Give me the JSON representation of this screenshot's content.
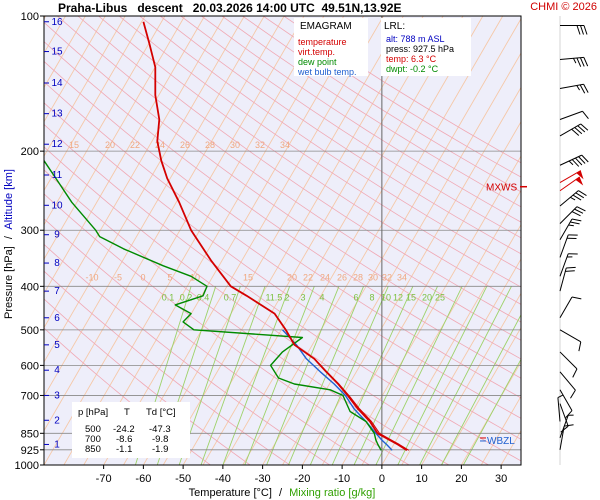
{
  "header": {
    "title": "Praha-Libus   descent   20.03.2026 14:00 UTC  49.51N,13.92E",
    "copyright": "CHMI © 2026"
  },
  "legend": {
    "title": "EMAGRAM",
    "items": [
      {
        "label": "temperature",
        "color": "#d40000"
      },
      {
        "label": "virt.temp.",
        "color": "#d40000"
      },
      {
        "label": "dew point",
        "color": "#008a00"
      },
      {
        "label": "wet bulb temp.",
        "color": "#2060d0"
      }
    ]
  },
  "lrl": {
    "title": "LRL:",
    "lines": [
      {
        "text": "alt: 788 m ASL",
        "color": "#0000c0"
      },
      {
        "text": "press: 927.5 hPa",
        "color": "#000000"
      },
      {
        "text": "temp: 6.3 °C",
        "color": "#d40000"
      },
      {
        "text": "dwpt: -0.2 °C",
        "color": "#008a00"
      }
    ]
  },
  "level_table": {
    "headers": [
      "p [hPa]",
      "T",
      "Td [°C]"
    ],
    "rows": [
      [
        "500",
        "-24.2",
        "-47.3"
      ],
      [
        "700",
        "-8.6",
        "-9.8"
      ],
      [
        "850",
        "-1.1",
        "-1.9"
      ]
    ]
  },
  "chart_data": {
    "type": "line",
    "title": "EMAGRAM",
    "xlabel": "Temperature [°C]",
    "xlabel_sep": "/",
    "xlabel2": "Mixing ratio [g/kg]",
    "ylabel": "Pressure [hPa]",
    "ylabel_sep": "/",
    "ylabel2": "Altitude [km]",
    "xlim": [
      -85,
      35
    ],
    "ylim": [
      1000,
      100
    ],
    "yscale": "log",
    "grid": true,
    "x_ticks": [
      -70,
      -60,
      -50,
      -40,
      -30,
      -20,
      -10,
      0,
      10,
      20,
      30
    ],
    "pressure_ticks": [
      100,
      200,
      300,
      400,
      500,
      600,
      700,
      850,
      925,
      1000
    ],
    "pressure_gridlines": [
      200,
      300,
      400,
      500,
      600,
      700,
      850,
      925
    ],
    "altitude_ticks": [
      {
        "label": "1",
        "p": 900
      },
      {
        "label": "2",
        "p": 795
      },
      {
        "label": "3",
        "p": 700
      },
      {
        "label": "4",
        "p": 615
      },
      {
        "label": "5",
        "p": 540
      },
      {
        "label": "6",
        "p": 470
      },
      {
        "label": "7",
        "p": 410
      },
      {
        "label": "8",
        "p": 355
      },
      {
        "label": "9",
        "p": 307
      },
      {
        "label": "10",
        "p": 264
      },
      {
        "label": "11",
        "p": 226
      },
      {
        "label": "12",
        "p": 193
      },
      {
        "label": "13",
        "p": 165
      },
      {
        "label": "14",
        "p": 141
      },
      {
        "label": "15",
        "p": 120
      },
      {
        "label": "16",
        "p": 103
      }
    ],
    "isotherm_labels_200": [
      "15",
      "20",
      "22",
      "24",
      "26",
      "28",
      "30",
      "32",
      "34"
    ],
    "isotherm_labels_400": [
      "-10",
      "-5",
      "0",
      "5",
      "10",
      "15",
      "20",
      "22",
      "24",
      "26",
      "28",
      "30",
      "32",
      "34"
    ],
    "mixing_ratio_labels": [
      "0.1",
      "0.2",
      "0.4",
      "0.7",
      "1",
      "1.5",
      "2",
      "3",
      "4",
      "6",
      "8",
      "10",
      "12",
      "15",
      "20",
      "25"
    ],
    "series": [
      {
        "name": "temperature",
        "color": "#d40000",
        "points": [
          [
            6.3,
            927.5
          ],
          [
            4.0,
            900
          ],
          [
            2.0,
            880
          ],
          [
            -1.1,
            850
          ],
          [
            -3.0,
            800
          ],
          [
            -6.0,
            750
          ],
          [
            -8.6,
            700
          ],
          [
            -11.0,
            660
          ],
          [
            -14.0,
            620
          ],
          [
            -17.0,
            580
          ],
          [
            -22.0,
            540
          ],
          [
            -24.2,
            500
          ],
          [
            -27.0,
            460
          ],
          [
            -34.0,
            420
          ],
          [
            -38.0,
            400
          ],
          [
            -43.0,
            350
          ],
          [
            -48.0,
            300
          ],
          [
            -51.0,
            260
          ],
          [
            -54.0,
            230
          ],
          [
            -55.5,
            210
          ],
          [
            -56.5,
            190
          ],
          [
            -56.0,
            170
          ],
          [
            -57.0,
            150
          ],
          [
            -57.0,
            130
          ],
          [
            -58.5,
            115
          ],
          [
            -60.0,
            103
          ]
        ]
      },
      {
        "name": "virt.temp.",
        "color": "#d40000",
        "points": [
          [
            6.8,
            927.5
          ],
          [
            4.4,
            900
          ],
          [
            2.4,
            880
          ],
          [
            -0.6,
            850
          ],
          [
            -2.6,
            800
          ],
          [
            -5.6,
            750
          ],
          [
            -8.3,
            700
          ],
          [
            -10.8,
            660
          ],
          [
            -13.8,
            620
          ],
          [
            -16.9,
            580
          ],
          [
            -21.9,
            540
          ],
          [
            -24.1,
            500
          ],
          [
            -27.0,
            460
          ],
          [
            -34.0,
            420
          ],
          [
            -38.0,
            400
          ]
        ]
      },
      {
        "name": "dew point",
        "color": "#008a00",
        "points": [
          [
            -0.2,
            927.5
          ],
          [
            -1.0,
            900
          ],
          [
            -1.5,
            880
          ],
          [
            -1.9,
            850
          ],
          [
            -4.0,
            800
          ],
          [
            -8.0,
            760
          ],
          [
            -9.8,
            700
          ],
          [
            -13.0,
            680
          ],
          [
            -22.0,
            660
          ],
          [
            -26.0,
            640
          ],
          [
            -28.0,
            600
          ],
          [
            -25.0,
            560
          ],
          [
            -20.0,
            520
          ],
          [
            -47.3,
            500
          ],
          [
            -50.0,
            480
          ],
          [
            -48.0,
            460
          ],
          [
            -52.0,
            440
          ],
          [
            -45.0,
            420
          ],
          [
            -44.0,
            400
          ],
          [
            -48.0,
            380
          ],
          [
            -55.0,
            360
          ],
          [
            -65.0,
            330
          ],
          [
            -71.0,
            310
          ],
          [
            -72.0,
            300
          ],
          [
            -78.0,
            260
          ],
          [
            -82.0,
            230
          ],
          [
            -85.0,
            210
          ]
        ]
      },
      {
        "name": "wet bulb temp.",
        "color": "#2060d0",
        "points": [
          [
            2.6,
            927.5
          ],
          [
            1.2,
            900
          ],
          [
            0.0,
            880
          ],
          [
            -1.5,
            850
          ],
          [
            -4.0,
            800
          ],
          [
            -7.0,
            750
          ],
          [
            -9.2,
            700
          ],
          [
            -12.0,
            660
          ],
          [
            -15.5,
            620
          ],
          [
            -19.0,
            580
          ],
          [
            -21.5,
            540
          ],
          [
            -25.0,
            500
          ]
        ]
      }
    ],
    "annotations": [
      {
        "label": "MXWS",
        "p": 240,
        "color": "#d40000"
      },
      {
        "label": "WBZL",
        "p": 875,
        "color": "#2060d0"
      }
    ],
    "wind_barbs": [
      {
        "p": 105,
        "dir": 270,
        "kt": 30
      },
      {
        "p": 125,
        "dir": 265,
        "kt": 35
      },
      {
        "p": 145,
        "dir": 260,
        "kt": 25
      },
      {
        "p": 170,
        "dir": 250,
        "kt": 10
      },
      {
        "p": 185,
        "dir": 240,
        "kt": 40
      },
      {
        "p": 215,
        "dir": 245,
        "kt": 45
      },
      {
        "p": 235,
        "dir": 240,
        "kt": 50
      },
      {
        "p": 245,
        "dir": 235,
        "kt": 50
      },
      {
        "p": 265,
        "dir": 230,
        "kt": 35
      },
      {
        "p": 290,
        "dir": 225,
        "kt": 30
      },
      {
        "p": 315,
        "dir": 210,
        "kt": 25
      },
      {
        "p": 345,
        "dir": 200,
        "kt": 20
      },
      {
        "p": 380,
        "dir": 200,
        "kt": 15
      },
      {
        "p": 410,
        "dir": 195,
        "kt": 20
      },
      {
        "p": 470,
        "dir": 210,
        "kt": 10
      },
      {
        "p": 500,
        "dir": 300,
        "kt": 10
      },
      {
        "p": 560,
        "dir": 315,
        "kt": 10
      },
      {
        "p": 620,
        "dir": 320,
        "kt": 10
      },
      {
        "p": 680,
        "dir": 330,
        "kt": 10
      },
      {
        "p": 730,
        "dir": 340,
        "kt": 10
      },
      {
        "p": 800,
        "dir": 175,
        "kt": 5
      },
      {
        "p": 870,
        "dir": 200,
        "kt": 5
      },
      {
        "p": 925,
        "dir": 190,
        "kt": 10
      }
    ]
  }
}
